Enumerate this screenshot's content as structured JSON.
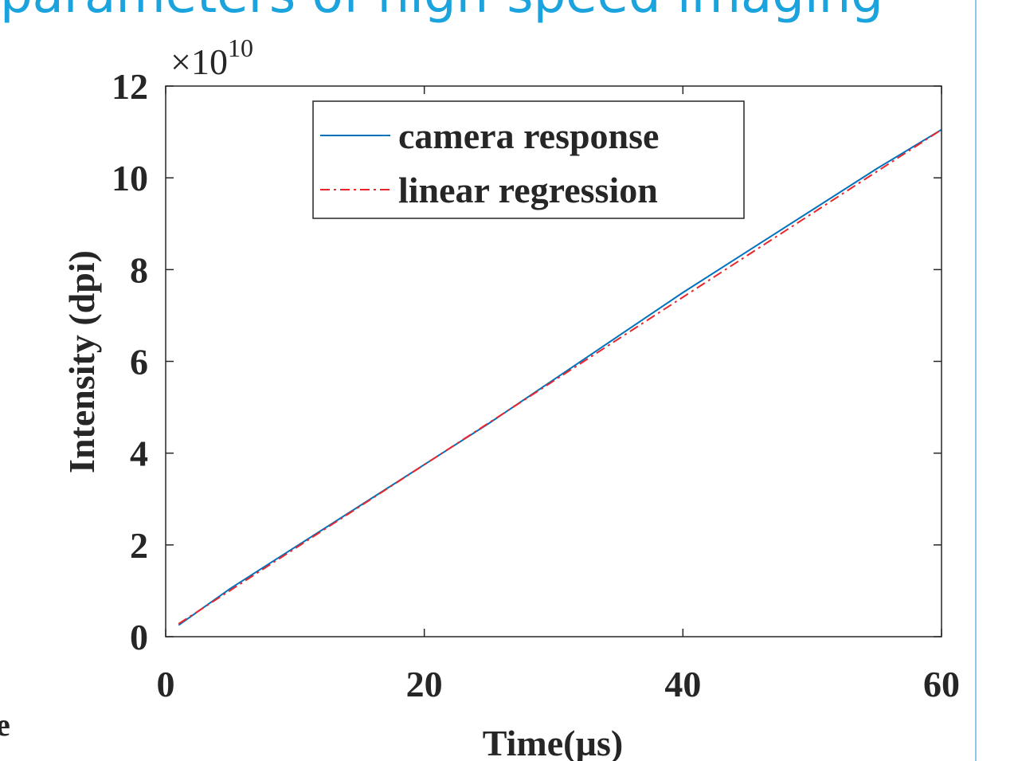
{
  "page": {
    "clipped_heading": "parameters of high-speed imaging",
    "clipped_left_text": "re",
    "colors": {
      "heading": "#1aa3dd",
      "rule": "#8fc6e6"
    }
  },
  "chart_data": {
    "type": "line",
    "xlabel": "Time(µs)",
    "ylabel": "Intensity (dpi)",
    "xlim": [
      0,
      60
    ],
    "ylim": [
      0,
      12
    ],
    "y_multiplier": "×10",
    "y_multiplier_exponent": "10",
    "x_ticks": [
      0,
      20,
      40,
      60
    ],
    "y_ticks": [
      0,
      2,
      4,
      6,
      8,
      10,
      12
    ],
    "grid": false,
    "legend_position": "top-right",
    "series": [
      {
        "name": "camera response",
        "color": "#0072bd",
        "style": "solid",
        "x": [
          1,
          5,
          10,
          15,
          20,
          25,
          30,
          35,
          40,
          45,
          50,
          55,
          60
        ],
        "values": [
          0.25,
          1.05,
          1.95,
          2.85,
          3.75,
          4.65,
          5.6,
          6.55,
          7.5,
          8.4,
          9.3,
          10.2,
          11.05
        ]
      },
      {
        "name": "linear regression",
        "color": "#e8262b",
        "style": "dashdot",
        "x": [
          1,
          60
        ],
        "values": [
          0.28,
          11.05
        ]
      }
    ]
  }
}
